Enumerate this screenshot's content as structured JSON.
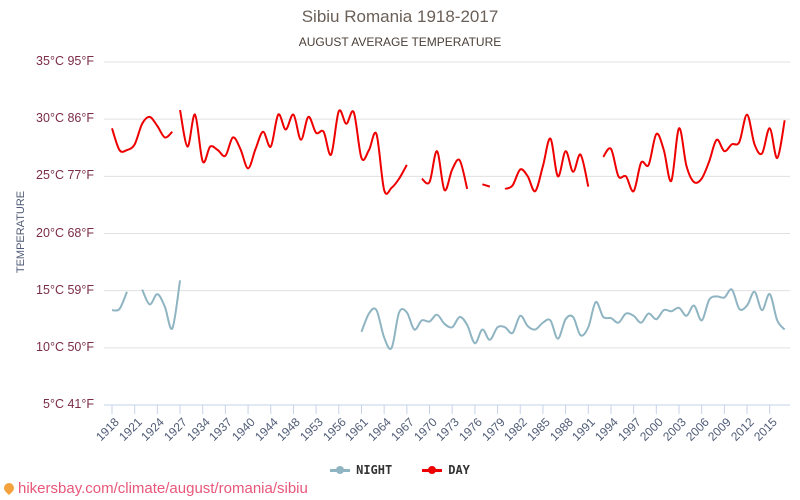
{
  "header": {
    "title": "Sibiu Romania 1918-2017",
    "subtitle": "AUGUST AVERAGE TEMPERATURE"
  },
  "footer": {
    "url_text": "hikersbay.com/climate/august/romania/sibiu",
    "pin_icon": "location-pin-icon"
  },
  "legend": [
    {
      "label": "NIGHT",
      "color": "#8fb4c2"
    },
    {
      "label": "DAY",
      "color": "#ee0000"
    }
  ],
  "chart_data": {
    "type": "line",
    "title": "Sibiu Romania 1918-2017",
    "subtitle": "AUGUST AVERAGE TEMPERATURE",
    "xlabel": "",
    "ylabel": "TEMPERATURE",
    "ylim": [
      5,
      35
    ],
    "y_ticks": [
      "35°C 95°F",
      "30°C 86°F",
      "25°C 77°F",
      "20°C 68°F",
      "15°C 59°F",
      "10°C 50°F",
      "5°C 41°F"
    ],
    "x_ticks": [
      "1918",
      "1921",
      "1924",
      "1927",
      "1934",
      "1937",
      "1940",
      "1944",
      "1948",
      "1953",
      "1956",
      "1961",
      "1964",
      "1967",
      "1970",
      "1973",
      "1976",
      "1979",
      "1982",
      "1985",
      "1988",
      "1991",
      "1994",
      "1997",
      "2000",
      "2003",
      "2006",
      "2009",
      "2012",
      "2015"
    ],
    "grid": true,
    "legend_position": "bottom",
    "series": [
      {
        "name": "DAY",
        "color": "#ee0000",
        "points": [
          [
            0,
            29.2
          ],
          [
            0.33,
            27.3
          ],
          [
            0.66,
            27.3
          ],
          [
            1,
            27.8
          ],
          [
            1.33,
            29.6
          ],
          [
            1.66,
            30.2
          ],
          [
            2,
            29.4
          ],
          [
            2.33,
            28.4
          ],
          [
            2.66,
            28.9
          ],
          null,
          [
            3,
            30.8
          ],
          [
            3.33,
            27.6
          ],
          [
            3.66,
            30.4
          ],
          [
            4,
            26.3
          ],
          [
            4.33,
            27.6
          ],
          [
            4.66,
            27.3
          ],
          [
            5,
            26.8
          ],
          [
            5.33,
            28.4
          ],
          [
            5.66,
            27.4
          ],
          [
            6,
            25.7
          ],
          [
            6.33,
            27.4
          ],
          [
            6.66,
            28.9
          ],
          [
            7,
            27.6
          ],
          [
            7.33,
            30.4
          ],
          [
            7.66,
            29.1
          ],
          [
            8,
            30.4
          ],
          [
            8.33,
            28.2
          ],
          [
            8.66,
            30.2
          ],
          [
            9,
            28.8
          ],
          [
            9.33,
            28.9
          ],
          [
            9.66,
            26.9
          ],
          [
            10,
            30.7
          ],
          [
            10.33,
            29.6
          ],
          [
            10.66,
            30.6
          ],
          [
            11,
            26.6
          ],
          [
            11.33,
            27.3
          ],
          [
            11.66,
            28.7
          ],
          [
            12,
            23.8
          ],
          [
            12.33,
            24.0
          ],
          [
            12.66,
            24.8
          ],
          [
            13,
            26.0
          ],
          null,
          [
            13.66,
            24.8
          ],
          [
            14,
            24.5
          ],
          [
            14.33,
            27.2
          ],
          [
            14.66,
            23.8
          ],
          [
            15,
            25.6
          ],
          [
            15.33,
            26.4
          ],
          [
            15.66,
            23.9
          ],
          null,
          [
            16.33,
            24.3
          ],
          [
            16.66,
            24.1
          ],
          null,
          [
            17.33,
            23.9
          ],
          [
            17.66,
            24.2
          ],
          [
            18,
            25.6
          ],
          [
            18.33,
            25.0
          ],
          [
            18.66,
            23.7
          ],
          [
            19,
            25.9
          ],
          [
            19.33,
            28.3
          ],
          [
            19.66,
            25.0
          ],
          [
            20,
            27.2
          ],
          [
            20.33,
            25.4
          ],
          [
            20.66,
            26.9
          ],
          [
            21,
            24.1
          ],
          null,
          [
            21.66,
            26.7
          ],
          [
            22,
            27.4
          ],
          [
            22.33,
            25.0
          ],
          [
            22.66,
            25.0
          ],
          [
            23,
            23.7
          ],
          [
            23.33,
            26.2
          ],
          [
            23.66,
            26.0
          ],
          [
            24,
            28.7
          ],
          [
            24.33,
            27.3
          ],
          [
            24.66,
            24.6
          ],
          [
            25,
            29.2
          ],
          [
            25.33,
            25.9
          ],
          [
            25.66,
            24.5
          ],
          [
            26,
            24.8
          ],
          [
            26.33,
            26.3
          ],
          [
            26.66,
            28.2
          ],
          [
            27,
            27.2
          ],
          [
            27.33,
            27.8
          ],
          [
            27.66,
            28.0
          ],
          [
            28,
            30.4
          ],
          [
            28.33,
            27.8
          ],
          [
            28.66,
            27.0
          ],
          [
            29,
            29.2
          ],
          [
            29.33,
            26.6
          ],
          [
            29.66,
            29.9
          ]
        ]
      },
      {
        "name": "NIGHT",
        "color": "#8fb4c2",
        "points": [
          [
            0,
            13.3
          ],
          [
            0.33,
            13.4
          ],
          [
            0.66,
            14.9
          ],
          null,
          [
            1.33,
            15.1
          ],
          [
            1.66,
            13.8
          ],
          [
            2,
            14.7
          ],
          [
            2.33,
            13.6
          ],
          [
            2.66,
            11.7
          ],
          [
            3,
            15.9
          ],
          null,
          [
            11,
            11.4
          ],
          [
            11.33,
            13.0
          ],
          [
            11.66,
            13.3
          ],
          [
            12,
            10.9
          ],
          [
            12.33,
            10.0
          ],
          [
            12.66,
            13.1
          ],
          [
            13,
            13.1
          ],
          [
            13.33,
            11.6
          ],
          [
            13.66,
            12.4
          ],
          [
            14,
            12.3
          ],
          [
            14.33,
            12.9
          ],
          [
            14.66,
            12.1
          ],
          [
            15,
            11.8
          ],
          [
            15.33,
            12.7
          ],
          [
            15.66,
            12.0
          ],
          [
            16,
            10.4
          ],
          [
            16.33,
            11.6
          ],
          [
            16.66,
            10.7
          ],
          [
            17,
            11.8
          ],
          [
            17.33,
            11.8
          ],
          [
            17.66,
            11.3
          ],
          [
            18,
            12.8
          ],
          [
            18.33,
            11.9
          ],
          [
            18.66,
            11.6
          ],
          [
            19,
            12.2
          ],
          [
            19.33,
            12.4
          ],
          [
            19.66,
            10.8
          ],
          [
            20,
            12.5
          ],
          [
            20.33,
            12.7
          ],
          [
            20.66,
            11.1
          ],
          [
            21,
            11.8
          ],
          [
            21.33,
            14.0
          ],
          [
            21.66,
            12.7
          ],
          [
            22,
            12.6
          ],
          [
            22.33,
            12.2
          ],
          [
            22.66,
            13.0
          ],
          [
            23,
            12.8
          ],
          [
            23.33,
            12.2
          ],
          [
            23.66,
            13.0
          ],
          [
            24,
            12.5
          ],
          [
            24.33,
            13.3
          ],
          [
            24.66,
            13.2
          ],
          [
            25,
            13.5
          ],
          [
            25.33,
            12.8
          ],
          [
            25.66,
            13.7
          ],
          [
            26,
            12.4
          ],
          [
            26.33,
            14.2
          ],
          [
            26.66,
            14.5
          ],
          [
            27,
            14.4
          ],
          [
            27.33,
            15.1
          ],
          [
            27.66,
            13.4
          ],
          [
            28,
            13.7
          ],
          [
            28.33,
            14.9
          ],
          [
            28.66,
            13.3
          ],
          [
            29,
            14.7
          ],
          [
            29.33,
            12.4
          ],
          [
            29.66,
            11.6
          ]
        ]
      }
    ]
  }
}
